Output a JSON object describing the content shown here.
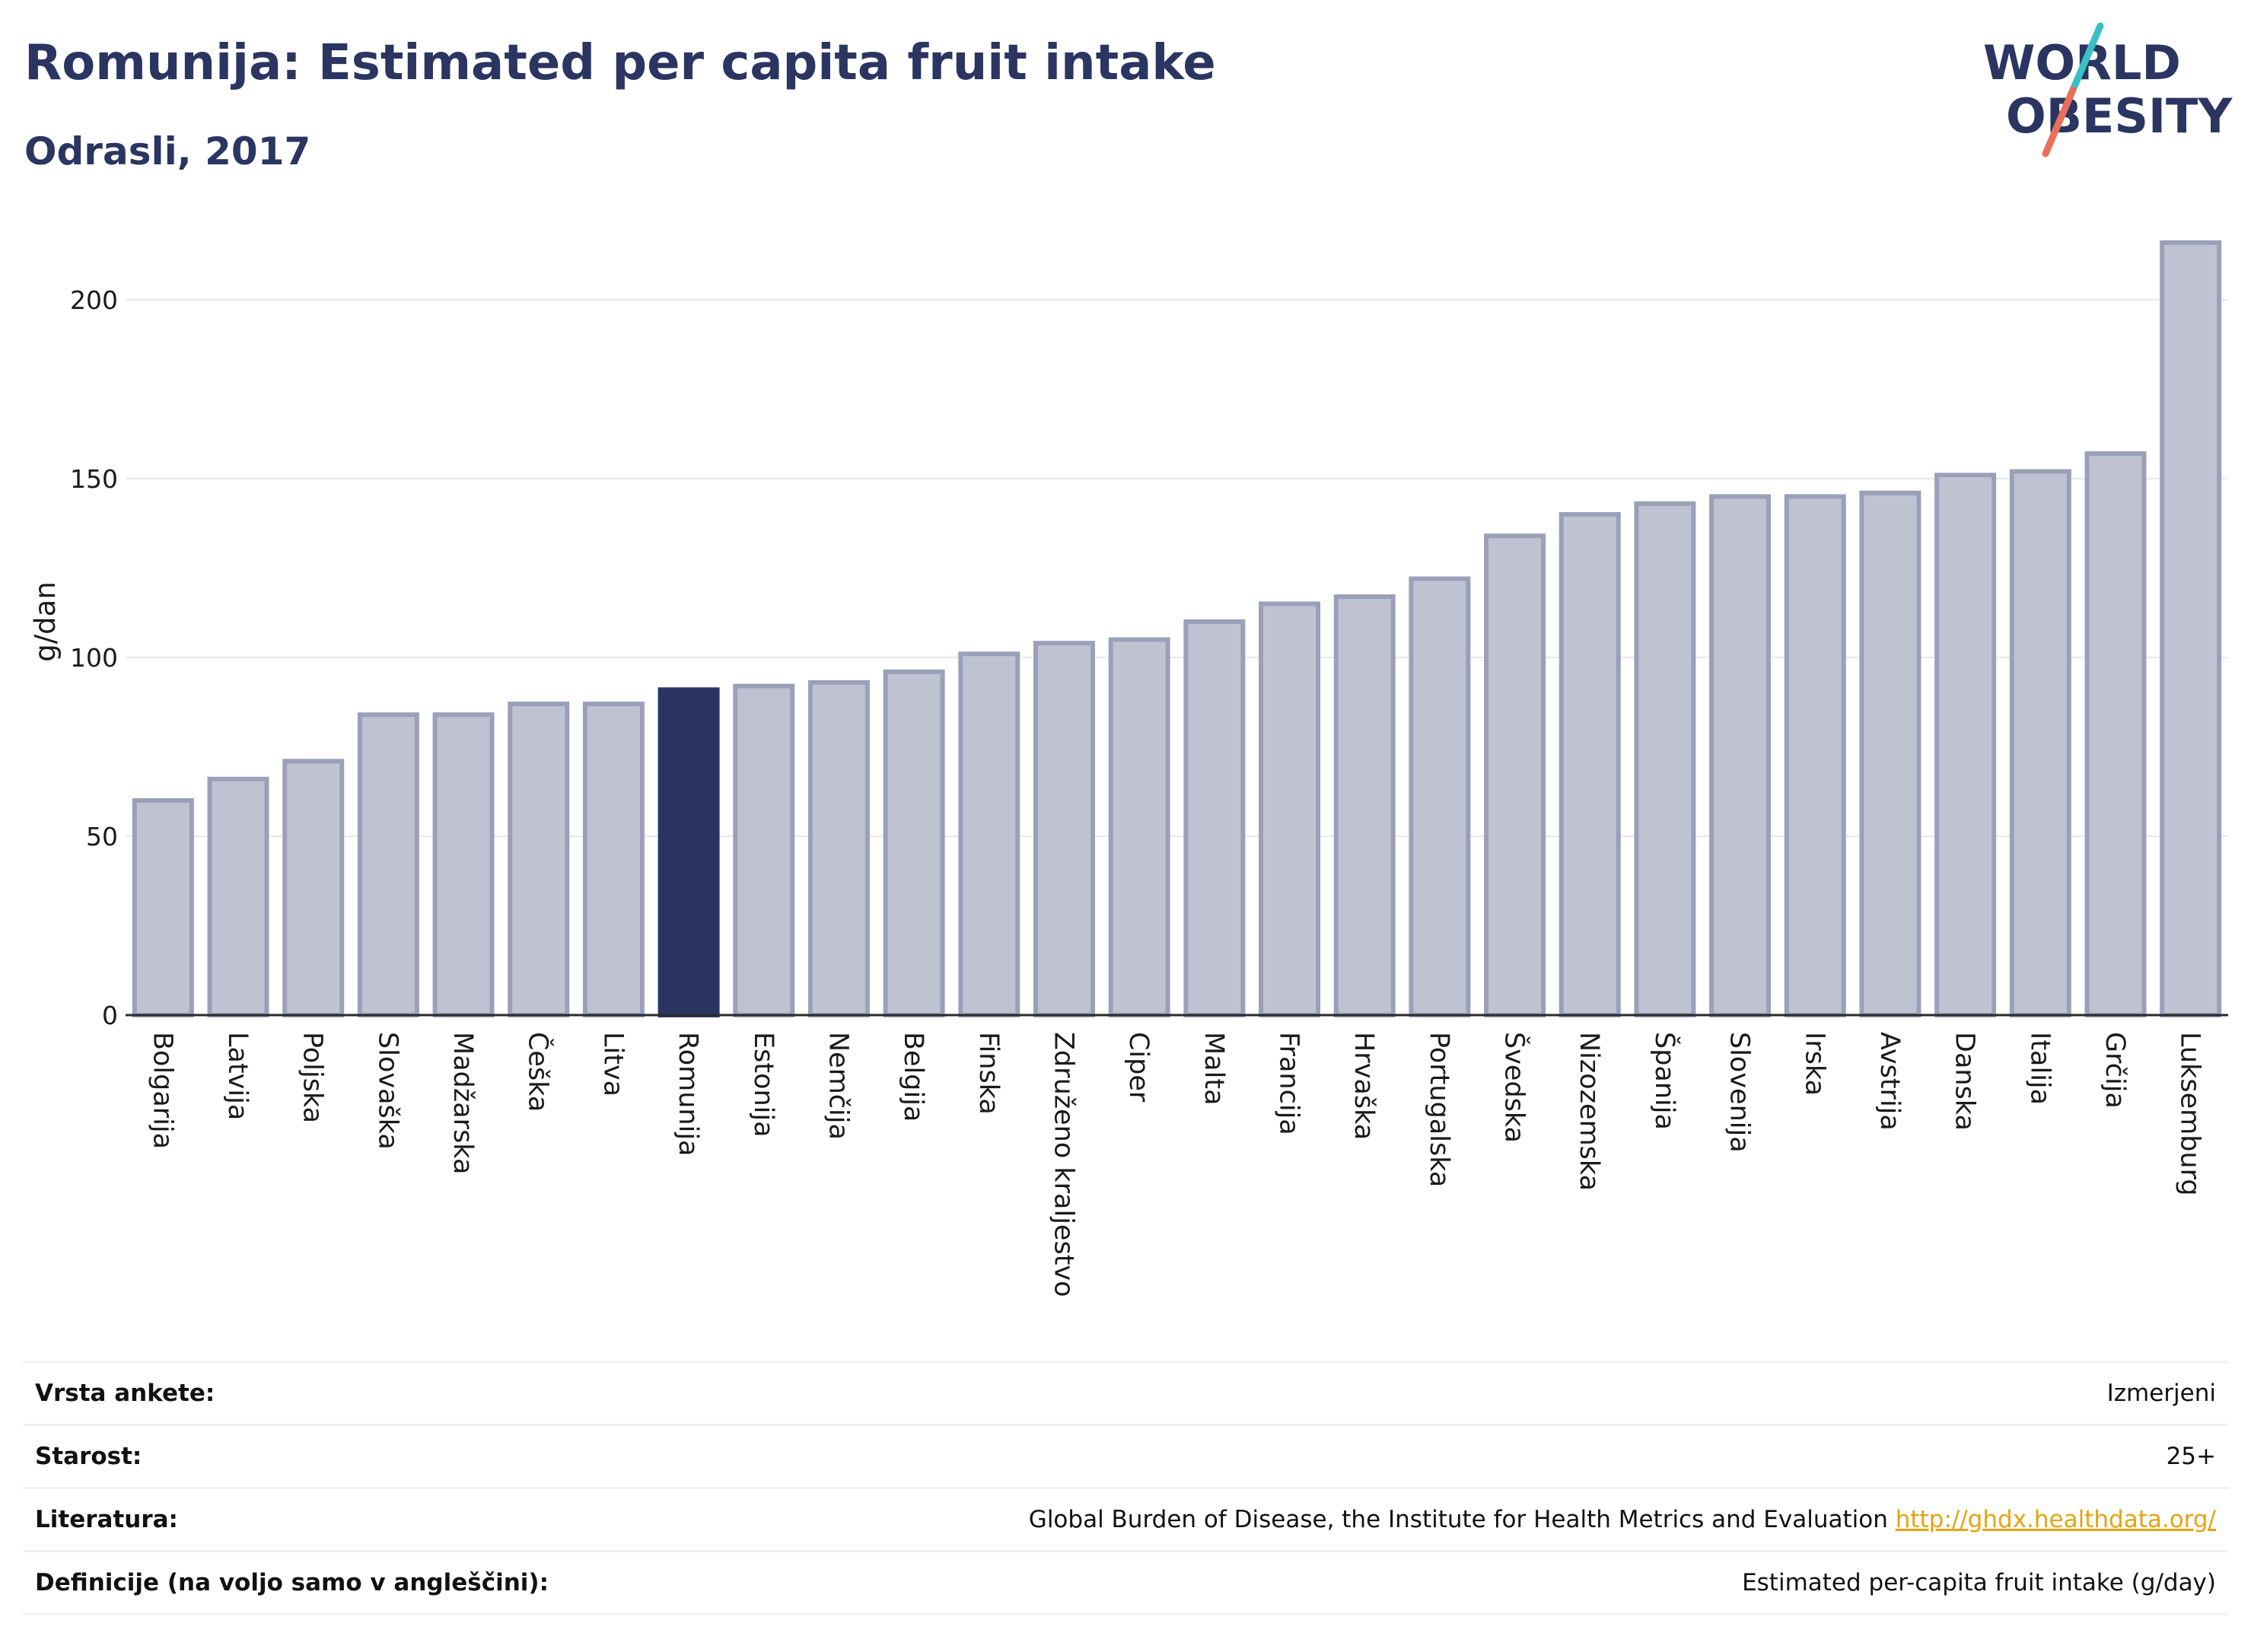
{
  "title": "Romunija: Estimated per capita fruit intake",
  "subtitle": "Odrasli, 2017",
  "logo": {
    "line1": "WORLD",
    "line2": "OBESITY",
    "stripe_colors": [
      "#3bbfc6",
      "#e8705a"
    ]
  },
  "colors": {
    "title": "#2b3561",
    "bar_default": "#bfc3d1",
    "bar_default_border": "#9aa0b8",
    "bar_highlight": "#2b3561",
    "grid": "#e6e8ec",
    "link": "#e4a411"
  },
  "chart_data": {
    "type": "bar",
    "title": "Romunija: Estimated per capita fruit intake",
    "subtitle": "Odrasli, 2017",
    "ylabel": "g/dan",
    "xlabel": "",
    "ylim": [
      0,
      220
    ],
    "yticks": [
      0,
      50,
      100,
      150,
      200
    ],
    "grid": true,
    "highlight": "Romunija",
    "categories": [
      "Bolgarija",
      "Latvija",
      "Poljska",
      "Slovaška",
      "Madžarska",
      "Češka",
      "Litva",
      "Romunija",
      "Estonija",
      "Nemčija",
      "Belgija",
      "Finska",
      "Združeno kraljestvo",
      "Ciper",
      "Malta",
      "Francija",
      "Hrvaška",
      "Portugalska",
      "Švedska",
      "Nizozemska",
      "Španija",
      "Slovenija",
      "Irska",
      "Avstrija",
      "Danska",
      "Italija",
      "Grčija",
      "Luksemburg"
    ],
    "values": [
      60,
      66,
      71,
      84,
      84,
      87,
      87,
      91,
      92,
      93,
      96,
      101,
      104,
      105,
      110,
      115,
      117,
      122,
      134,
      140,
      143,
      145,
      145,
      146,
      151,
      152,
      157,
      216
    ]
  },
  "info": [
    {
      "key": "Vrsta ankete:",
      "value": "Izmerjeni"
    },
    {
      "key": "Starost:",
      "value": "25+"
    },
    {
      "key": "Literatura:",
      "value": "Global Burden of Disease, the Institute for Health Metrics and Evaluation",
      "link": "http://ghdx.healthdata.org/"
    },
    {
      "key": "Definicije (na voljo samo v angleščini):",
      "value": "Estimated per-capita fruit intake (g/day)"
    }
  ]
}
